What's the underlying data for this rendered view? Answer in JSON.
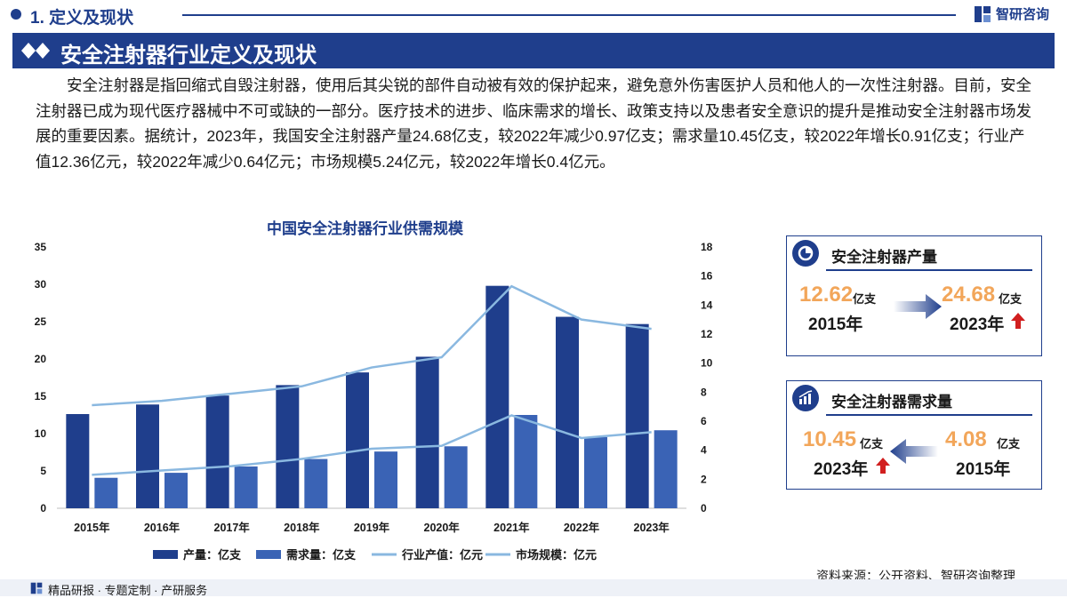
{
  "header": {
    "section_title": "1. 定义及现状",
    "brand_name": "智研咨询"
  },
  "banner": {
    "title": "安全注射器行业定义及现状"
  },
  "intro_text": "安全注射器是指回缩式自毁注射器，使用后其尖锐的部件自动被有效的保护起来，避免意外伤害医护人员和他人的一次性注射器。目前，安全注射器已成为现代医疗器械中不可或缺的一部分。医疗技术的进步、临床需求的增长、政策支持以及患者安全意识的提升是推动安全注射器市场发展的重要因素。据统计，2023年，我国安全注射器产量24.68亿支，较2022年减少0.97亿支；需求量10.45亿支，较2022年增长0.91亿支；行业产值12.36亿元，较2022年减少0.64亿元；市场规模5.24亿元，较2022年增长0.4亿元。",
  "chart_data": {
    "type": "bar",
    "title": "中国安全注射器行业供需规模",
    "categories": [
      "2015年",
      "2016年",
      "2017年",
      "2018年",
      "2019年",
      "2020年",
      "2021年",
      "2022年",
      "2023年"
    ],
    "left_axis": {
      "min": 0,
      "max": 35,
      "ticks": [
        "0",
        "5",
        "10",
        "15",
        "20",
        "25",
        "30",
        "35"
      ]
    },
    "right_axis": {
      "min": 0,
      "max": 18,
      "ticks": [
        "0",
        "2",
        "4",
        "6",
        "8",
        "10",
        "12",
        "14",
        "16",
        "18"
      ]
    },
    "series": [
      {
        "name": "产量：亿支",
        "kind": "bar",
        "axis": "left",
        "color": "#1f3e8c",
        "values": [
          12.62,
          13.9,
          15.1,
          16.5,
          18.2,
          20.3,
          29.8,
          25.65,
          24.68
        ]
      },
      {
        "name": "需求量：亿支",
        "kind": "bar",
        "axis": "left",
        "color": "#3a63b5",
        "values": [
          4.08,
          4.75,
          5.6,
          6.6,
          7.6,
          8.3,
          12.5,
          9.54,
          10.45
        ]
      },
      {
        "name": "行业产值：亿元",
        "kind": "line",
        "axis": "right",
        "color": "#8ab8e0",
        "values": [
          7.1,
          7.4,
          7.9,
          8.4,
          9.7,
          10.4,
          15.3,
          13.0,
          12.36
        ]
      },
      {
        "name": "市场规模：亿元",
        "kind": "line",
        "axis": "right",
        "color": "#8ab8e0",
        "values": [
          2.3,
          2.6,
          2.9,
          3.4,
          4.1,
          4.3,
          6.4,
          4.84,
          5.24
        ]
      }
    ],
    "legend_position": "bottom",
    "grid": false
  },
  "card_output": {
    "title": "安全注射器产量",
    "from_value": "12.62",
    "from_unit": "亿支",
    "from_year": "2015年",
    "to_value": "24.68",
    "to_unit": "亿支",
    "to_year": "2023年"
  },
  "card_demand": {
    "title": "安全注射器需求量",
    "left_value": "10.45",
    "left_unit": "亿支",
    "left_year": "2023年",
    "right_value": "4.08",
    "right_unit": "亿支",
    "right_year": "2015年"
  },
  "source": "资料来源：公开资料、智研咨询整理",
  "footer": "精品研报 · 专题定制 · 产研服务",
  "colors": {
    "primary": "#1f3e8c",
    "accent_orange": "#f2a65a",
    "up_arrow": "#d11f1f"
  }
}
